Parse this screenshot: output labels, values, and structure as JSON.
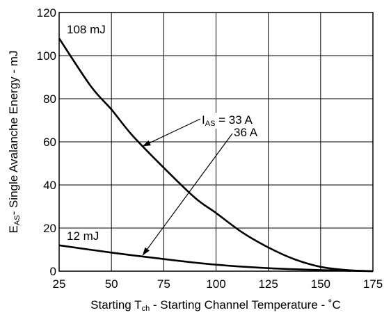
{
  "chart_data": {
    "type": "line",
    "title": "",
    "xlabel": {
      "pre": "Starting T",
      "sub": "ch",
      "post": " -  Starting Channel Temperature - ˚C"
    },
    "ylabel": {
      "pre": "E",
      "sub": "AS",
      "post": "- Single Avalanche Energy - mJ"
    },
    "xlim": [
      25,
      175
    ],
    "ylim": [
      0,
      120
    ],
    "xticks": [
      25,
      50,
      75,
      100,
      125,
      150,
      175
    ],
    "yticks": [
      0,
      20,
      40,
      60,
      80,
      100,
      120
    ],
    "grid": true,
    "series": [
      {
        "name": "IAS = 33 A",
        "x": [
          25,
          40,
          50,
          60,
          75,
          90,
          100,
          112.5,
          125,
          137.5,
          150,
          162.5,
          175
        ],
        "y": [
          108,
          86,
          75,
          63,
          48,
          34,
          27,
          18,
          11,
          5.5,
          2,
          0.5,
          0
        ]
      },
      {
        "name": "36 A",
        "x": [
          25,
          50,
          75,
          100,
          125,
          150,
          175
        ],
        "y": [
          12,
          8.6,
          5.6,
          3,
          1.4,
          0.5,
          0
        ]
      }
    ],
    "annotations": [
      {
        "id": "top-start",
        "text": "108 mJ"
      },
      {
        "id": "bottom-start",
        "text": "12 mJ"
      }
    ],
    "legend_labels": {
      "ias_pre": "I",
      "ias_sub": "AS",
      "ias_post": " = 33 A",
      "second": "36 A"
    },
    "arrows": [
      {
        "series": "IAS = 33 A",
        "to_x": 65
      },
      {
        "series": "36 A",
        "to_x": 65
      }
    ]
  }
}
